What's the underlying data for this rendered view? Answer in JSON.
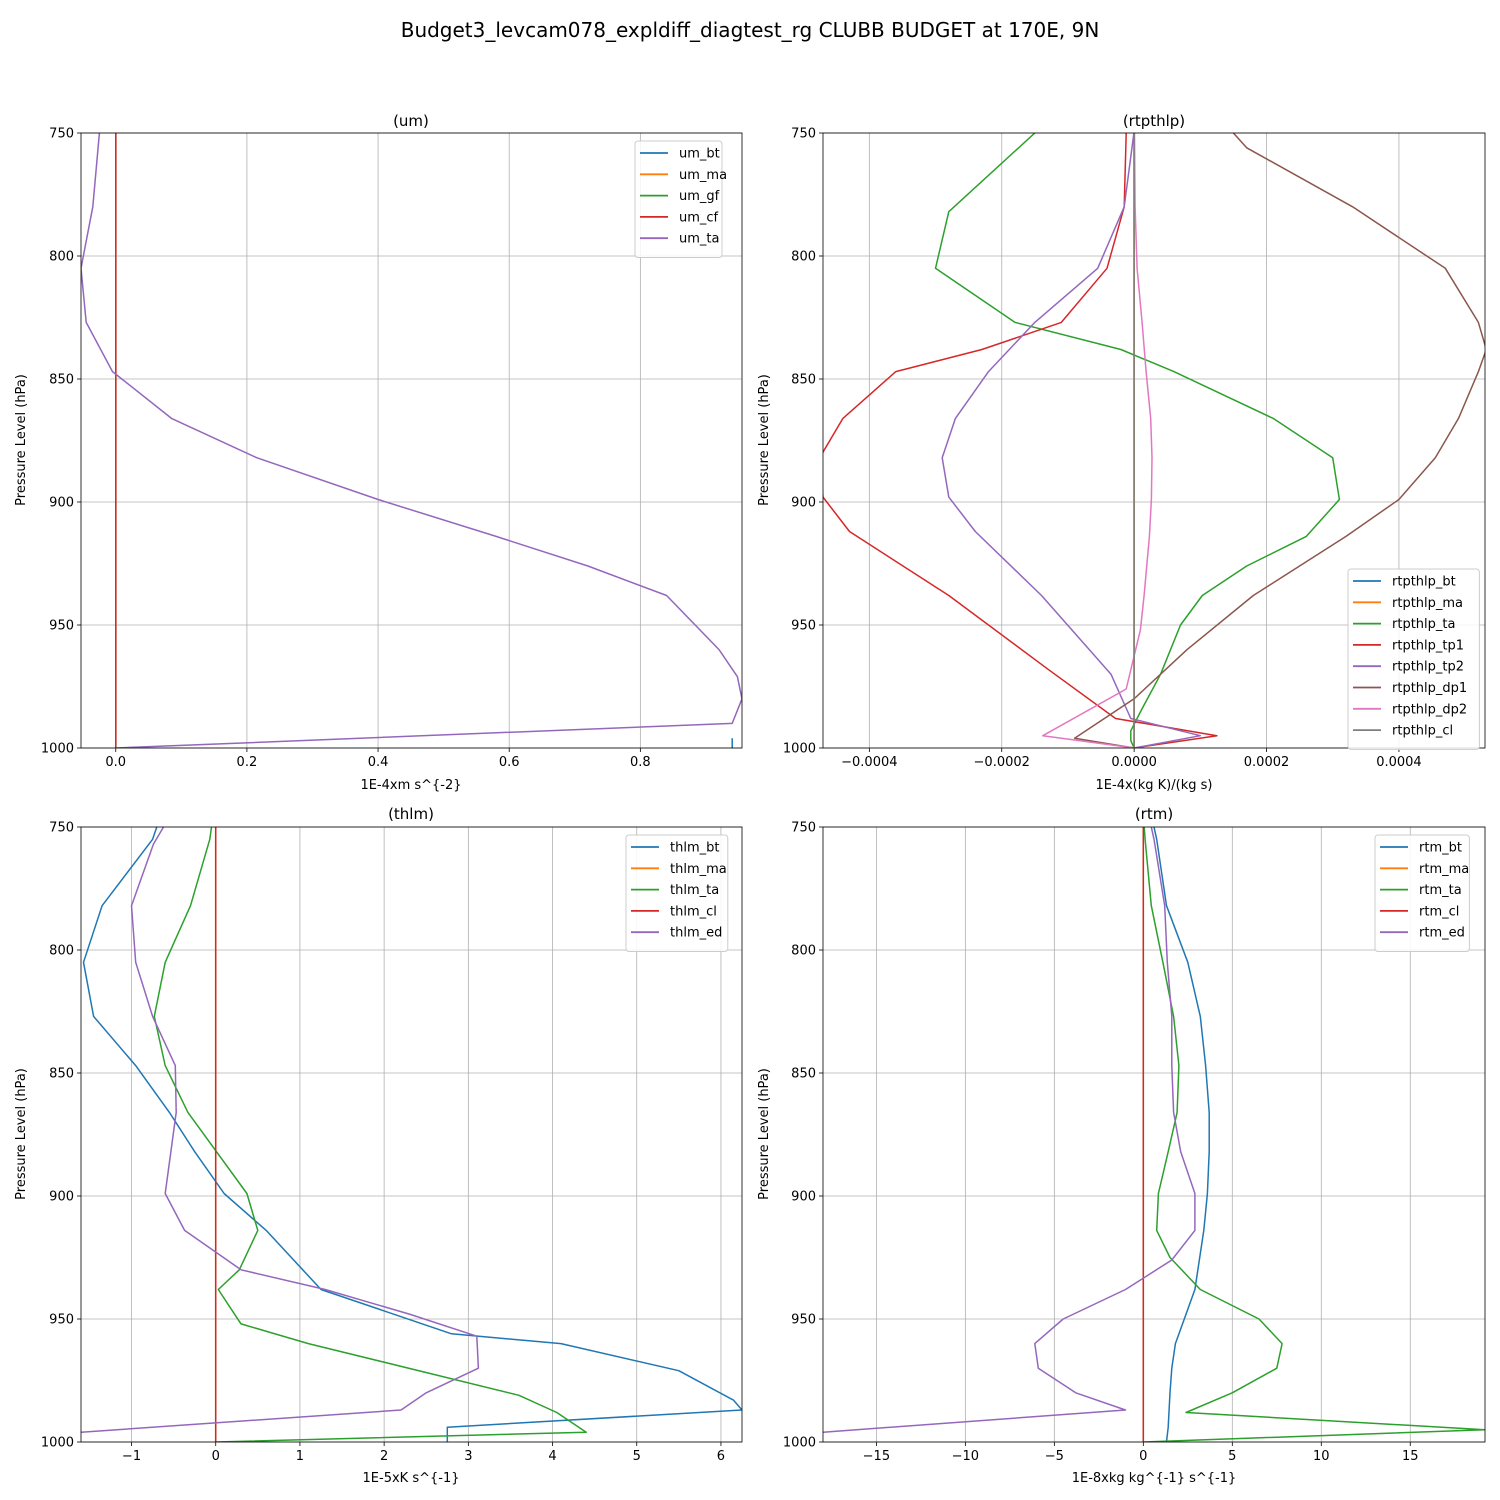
{
  "figure_title": "Budget3_levcam078_expldiff_diagtest_rg CLUBB BUDGET at 170E, 9N",
  "colors": {
    "c0": "#1f77b4",
    "c1": "#ff7f0e",
    "c2": "#2ca02c",
    "c3": "#d62728",
    "c4": "#9467bd",
    "c5": "#8c564b",
    "c6": "#e377c2",
    "c7": "#7f7f7f",
    "grid": "#b0b0b0"
  },
  "chart_data": [
    {
      "type": "line",
      "title": "(um)",
      "xlabel": "1E-4xm s^{-2}",
      "ylabel": "Pressure Level (hPa)",
      "xlim": [
        -0.053,
        0.955
      ],
      "ylim": [
        1000,
        750
      ],
      "y_inverted": true,
      "grid": true,
      "xticks": [
        0.0,
        0.2,
        0.4,
        0.6,
        0.8
      ],
      "xtick_labels": [
        "0.0",
        "0.2",
        "0.4",
        "0.6",
        "0.8"
      ],
      "yticks": [
        750,
        800,
        850,
        900,
        950,
        1000
      ],
      "ytick_labels": [
        "750",
        "800",
        "850",
        "900",
        "950",
        "1000"
      ],
      "legend_loc": "upper right",
      "series": [
        {
          "name": "um_bt",
          "color": "c0",
          "x": [
            0.94,
            0.94
          ],
          "y": [
            1000,
            996
          ]
        },
        {
          "name": "um_ma",
          "color": "c1",
          "x": [
            0,
            0
          ],
          "y": [
            750,
            1000
          ]
        },
        {
          "name": "um_gf",
          "color": "c2",
          "x": [
            0,
            0
          ],
          "y": [
            750,
            1000
          ]
        },
        {
          "name": "um_cf",
          "color": "c3",
          "x": [
            0,
            0
          ],
          "y": [
            750,
            1000
          ]
        },
        {
          "name": "um_ta",
          "color": "c4",
          "x": [
            -0.025,
            -0.035,
            -0.053,
            -0.045,
            -0.005,
            0.085,
            0.215,
            0.4,
            0.58,
            0.72,
            0.84,
            0.92,
            0.948,
            0.955,
            0.94,
            0.0
          ],
          "y": [
            750,
            780,
            805,
            827,
            847,
            866,
            882,
            899,
            914,
            926,
            938,
            960,
            971,
            980,
            990,
            1000
          ]
        }
      ]
    },
    {
      "type": "line",
      "title": "(rtpthlp)",
      "xlabel": "1E-4x(kg K)/(kg s)",
      "ylabel": "Pressure Level (hPa)",
      "xlim": [
        -0.00047,
        0.00053
      ],
      "ylim": [
        1000,
        750
      ],
      "y_inverted": true,
      "grid": true,
      "xticks": [
        -0.0004,
        -0.0002,
        0.0,
        0.0002,
        0.0004
      ],
      "xtick_labels": [
        "−0.0004",
        "−0.0002",
        "0.0000",
        "0.0002",
        "0.0004"
      ],
      "yticks": [
        750,
        800,
        850,
        900,
        950,
        1000
      ],
      "ytick_labels": [
        "750",
        "800",
        "850",
        "900",
        "950",
        "1000"
      ],
      "legend_loc": "lower right",
      "series": [
        {
          "name": "rtpthlp_bt",
          "color": "c0",
          "x": [
            0.0,
            0.0,
            0.0,
            0.0,
            0.0,
            0.0,
            0.0,
            0.0,
            0.0,
            0.0,
            0.0,
            0.0,
            0.0,
            0.0
          ],
          "y": [
            750,
            780,
            805,
            827,
            847,
            866,
            882,
            899,
            914,
            938,
            960,
            980,
            990,
            1000
          ]
        },
        {
          "name": "rtpthlp_ma",
          "color": "c1",
          "x": [
            0.0,
            0.0
          ],
          "y": [
            750,
            1000
          ]
        },
        {
          "name": "rtpthlp_ta",
          "color": "c2",
          "x": [
            -0.00015,
            -0.00028,
            -0.0003,
            -0.00018,
            -2e-05,
            6e-05,
            0.00021,
            0.0003,
            0.00031,
            0.00026,
            0.00017,
            0.000103,
            7e-05,
            4e-05,
            1e-05,
            -5e-06,
            -5e-06,
            0.0
          ],
          "y": [
            750,
            782,
            805,
            827,
            838,
            847,
            866,
            882,
            899,
            914,
            926,
            938,
            950,
            970,
            985,
            993,
            997,
            1000
          ]
        },
        {
          "name": "rtpthlp_tp1",
          "color": "c3",
          "x": [
            -1.2e-05,
            -1.5e-05,
            -4.1e-05,
            -0.00011,
            -0.00023,
            -0.00036,
            -0.00044,
            -0.000475,
            -0.00047,
            -0.00043,
            -0.00028,
            -0.00013,
            -2.8e-05,
            0.000125,
            0.0
          ],
          "y": [
            750,
            780,
            805,
            827,
            838,
            847,
            866,
            882,
            898,
            912,
            938,
            968,
            988,
            995,
            1000
          ]
        },
        {
          "name": "rtpthlp_tp2",
          "color": "c4",
          "x": [
            -4e-07,
            -1.5e-05,
            -5.5e-05,
            -0.00015,
            -0.00022,
            -0.00027,
            -0.00029,
            -0.00028,
            -0.00024,
            -0.00014,
            -3.5e-05,
            -5e-06,
            0.0001,
            0.0
          ],
          "y": [
            750,
            780,
            805,
            827,
            847,
            866,
            882,
            898,
            912,
            938,
            970,
            988,
            995,
            1000
          ]
        },
        {
          "name": "rtpthlp_dp1",
          "color": "c5",
          "x": [
            0.00015,
            0.00017,
            0.00033,
            0.00047,
            0.00052,
            0.000532,
            0.00052,
            0.00049,
            0.000455,
            0.0004,
            0.00032,
            0.00018,
            8e-05,
            0.0,
            -9e-05,
            0.0
          ],
          "y": [
            750,
            756,
            780,
            805,
            827,
            838,
            847,
            866,
            882,
            899,
            914,
            938,
            960,
            980,
            996,
            1000
          ]
        },
        {
          "name": "rtpthlp_dp2",
          "color": "c6",
          "x": [
            5e-07,
            1.5e-06,
            4.5e-06,
            1.2e-05,
            1.8e-05,
            2.5e-05,
            2.7e-05,
            2.6e-05,
            2.3e-05,
            1.5e-05,
            9.5e-06,
            -1.2e-05,
            -0.000138,
            0.0
          ],
          "y": [
            750,
            780,
            805,
            827,
            847,
            866,
            882,
            899,
            914,
            938,
            952,
            976,
            995,
            1000
          ]
        },
        {
          "name": "rtpthlp_cl",
          "color": "c7",
          "x": [
            0.0,
            0.0
          ],
          "y": [
            750,
            1000
          ]
        }
      ]
    },
    {
      "type": "line",
      "title": "(thlm)",
      "xlabel": "1E-5xK s^{-1}",
      "ylabel": "Pressure Level (hPa)",
      "xlim": [
        -1.6,
        6.25
      ],
      "ylim": [
        1000,
        750
      ],
      "y_inverted": true,
      "grid": true,
      "xticks": [
        -1,
        0,
        1,
        2,
        3,
        4,
        5,
        6
      ],
      "xtick_labels": [
        "−1",
        "0",
        "1",
        "2",
        "3",
        "4",
        "5",
        "6"
      ],
      "yticks": [
        750,
        800,
        850,
        900,
        950,
        1000
      ],
      "ytick_labels": [
        "750",
        "800",
        "850",
        "900",
        "950",
        "1000"
      ],
      "legend_loc": "upper right",
      "series": [
        {
          "name": "thlm_bt",
          "color": "c0",
          "x": [
            -0.7,
            -0.75,
            -1.35,
            -1.57,
            -1.45,
            -0.95,
            -0.55,
            -0.25,
            0.1,
            0.6,
            1.25,
            2.8,
            4.1,
            5.5,
            6.15,
            6.25,
            2.75,
            2.75
          ],
          "y": [
            750,
            755,
            782,
            805,
            827,
            847,
            866,
            882,
            899,
            914,
            938,
            956,
            960,
            971,
            983,
            987,
            994,
            1000
          ]
        },
        {
          "name": "thlm_ma",
          "color": "c1",
          "x": [
            0.0,
            0.0
          ],
          "y": [
            750,
            1000
          ]
        },
        {
          "name": "thlm_ta",
          "color": "c2",
          "x": [
            -0.05,
            -0.07,
            -0.3,
            -0.6,
            -0.73,
            -0.6,
            -0.33,
            0.37,
            0.5,
            0.28,
            0.03,
            0.3,
            1.1,
            3.6,
            4.05,
            4.4,
            0.0
          ],
          "y": [
            750,
            755,
            782,
            805,
            827,
            847,
            866,
            899,
            914,
            930,
            938,
            952,
            960,
            981,
            988,
            996,
            1000
          ]
        },
        {
          "name": "thlm_cl",
          "color": "c3",
          "x": [
            0.0,
            0.0
          ],
          "y": [
            750,
            1000
          ]
        },
        {
          "name": "thlm_ed",
          "color": "c4",
          "x": [
            -0.62,
            -0.74,
            -1.0,
            -0.95,
            -0.75,
            -0.48,
            -0.47,
            -0.6,
            -0.37,
            0.3,
            1.3,
            2.3,
            3.1,
            3.12,
            2.5,
            2.2,
            -1.6
          ],
          "y": [
            750,
            757,
            782,
            805,
            827,
            847,
            866,
            899,
            914,
            930,
            938,
            948,
            957,
            970,
            980,
            987,
            996
          ]
        }
      ]
    },
    {
      "type": "line",
      "title": "(rtm)",
      "xlabel": "1E-8xkg kg^{-1} s^{-1}",
      "ylabel": "Pressure Level (hPa)",
      "xlim": [
        -18,
        19.2
      ],
      "ylim": [
        1000,
        750
      ],
      "y_inverted": true,
      "grid": true,
      "xticks": [
        -15,
        -10,
        -5,
        0,
        5,
        10,
        15
      ],
      "xtick_labels": [
        "−15",
        "−10",
        "−5",
        "0",
        "5",
        "10",
        "15"
      ],
      "yticks": [
        750,
        800,
        850,
        900,
        950,
        1000
      ],
      "ytick_labels": [
        "750",
        "800",
        "850",
        "900",
        "950",
        "1000"
      ],
      "legend_loc": "upper right",
      "series": [
        {
          "name": "rtm_bt",
          "color": "c0",
          "x": [
            0.6,
            0.75,
            1.3,
            2.5,
            3.2,
            3.5,
            3.7,
            3.7,
            3.6,
            3.4,
            2.9,
            2.3,
            1.8,
            1.6,
            1.5,
            1.4,
            1.3
          ],
          "y": [
            750,
            755,
            782,
            805,
            827,
            847,
            866,
            882,
            899,
            914,
            938,
            950,
            960,
            970,
            980,
            994,
            1000
          ]
        },
        {
          "name": "rtm_ma",
          "color": "c1",
          "x": [
            0.0,
            0.0
          ],
          "y": [
            750,
            1000
          ]
        },
        {
          "name": "rtm_ta",
          "color": "c2",
          "x": [
            0.05,
            0.1,
            0.45,
            1.1,
            1.7,
            2.0,
            1.9,
            1.4,
            0.85,
            0.75,
            1.5,
            3.2,
            6.5,
            7.8,
            7.5,
            5.0,
            2.4,
            19.2,
            0.0
          ],
          "y": [
            750,
            755,
            782,
            805,
            827,
            847,
            866,
            882,
            899,
            914,
            925,
            938,
            950,
            960,
            970,
            980,
            988,
            995,
            1000
          ]
        },
        {
          "name": "rtm_cl",
          "color": "c3",
          "x": [
            0.0,
            0.0
          ],
          "y": [
            750,
            1000
          ]
        },
        {
          "name": "rtm_ed",
          "color": "c4",
          "x": [
            0.45,
            0.6,
            1.2,
            1.35,
            1.6,
            1.6,
            1.7,
            2.1,
            2.9,
            2.9,
            1.6,
            -1.0,
            -4.5,
            -6.1,
            -5.9,
            -3.8,
            -1.0,
            -18.0
          ],
          "y": [
            750,
            755,
            782,
            805,
            827,
            847,
            866,
            882,
            899,
            914,
            926,
            938,
            950,
            960,
            970,
            980,
            987,
            996
          ]
        }
      ]
    }
  ]
}
